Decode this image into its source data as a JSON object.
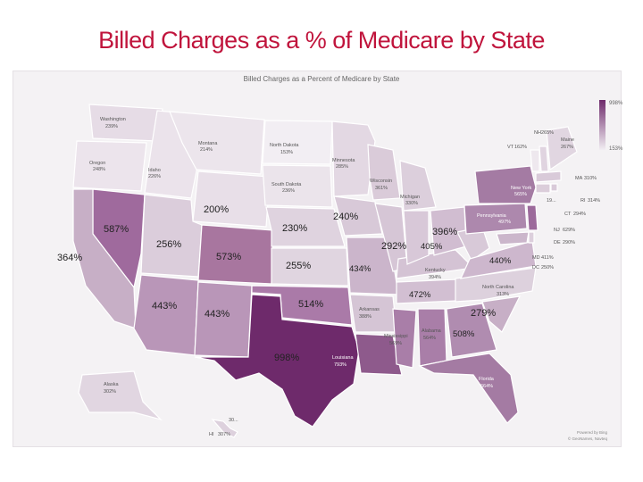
{
  "slide_title": "Billed Charges as a % of Medicare by State",
  "map_title": "Billed Charges as a Percent of Medicare by State",
  "legend": {
    "high": "998%",
    "low": "153%",
    "high_color": "#6e2a6b",
    "low_color": "#f2eef3"
  },
  "attribution": [
    "Powered by Bing",
    "© GeoNames, Navteq"
  ],
  "title_color": "#c0143c",
  "states": [
    {
      "name": "Washington",
      "value": "239%"
    },
    {
      "name": "Oregon",
      "value": "248%"
    },
    {
      "name": "Idaho",
      "value": "226%"
    },
    {
      "name": "Montana",
      "value": "214%"
    },
    {
      "name": "North Dakota",
      "value": "153%"
    },
    {
      "name": "South Dakota",
      "value": "236%"
    },
    {
      "name": "Minnesota",
      "value": "285%"
    },
    {
      "name": "Wisconsin",
      "value": "361%"
    },
    {
      "name": "Michigan",
      "value": "330%"
    },
    {
      "name": "New York",
      "value": "565%"
    },
    {
      "name": "Pennsylvania",
      "value": "497%"
    },
    {
      "name": "Maine",
      "value": "267%"
    },
    {
      "name": "NH",
      "value": "265%"
    },
    {
      "name": "VT",
      "value": "162%"
    },
    {
      "name": "MA",
      "value": "310%"
    },
    {
      "name": "RI",
      "value": "314%"
    },
    {
      "name": "CT",
      "value": "294%"
    },
    {
      "name": "NJ",
      "value": "629%"
    },
    {
      "name": "DE",
      "value": "290%"
    },
    {
      "name": "MD",
      "value": "411%"
    },
    {
      "name": "DC",
      "value": "250%"
    },
    {
      "name": "Kentucky",
      "value": "394%"
    },
    {
      "name": "North Carolina",
      "value": "313%"
    },
    {
      "name": "Arkansas",
      "value": "388%"
    },
    {
      "name": "Mississippi",
      "value": "569%"
    },
    {
      "name": "Alabama",
      "value": "564%"
    },
    {
      "name": "Louisiana",
      "value": "793%"
    },
    {
      "name": "Florida",
      "value": "664%"
    },
    {
      "name": "Alaska",
      "value": "302%"
    },
    {
      "name": "HI",
      "value": "307%"
    }
  ],
  "overlay_labels": [
    "200%",
    "240%",
    "587%",
    "230%",
    "396%",
    "256%",
    "292%",
    "405%",
    "364%",
    "573%",
    "255%",
    "434%",
    "440%",
    "472%",
    "443%",
    "443%",
    "514%",
    "279%",
    "508%",
    "998%"
  ],
  "partial_labels": [
    "19...",
    "30..."
  ]
}
